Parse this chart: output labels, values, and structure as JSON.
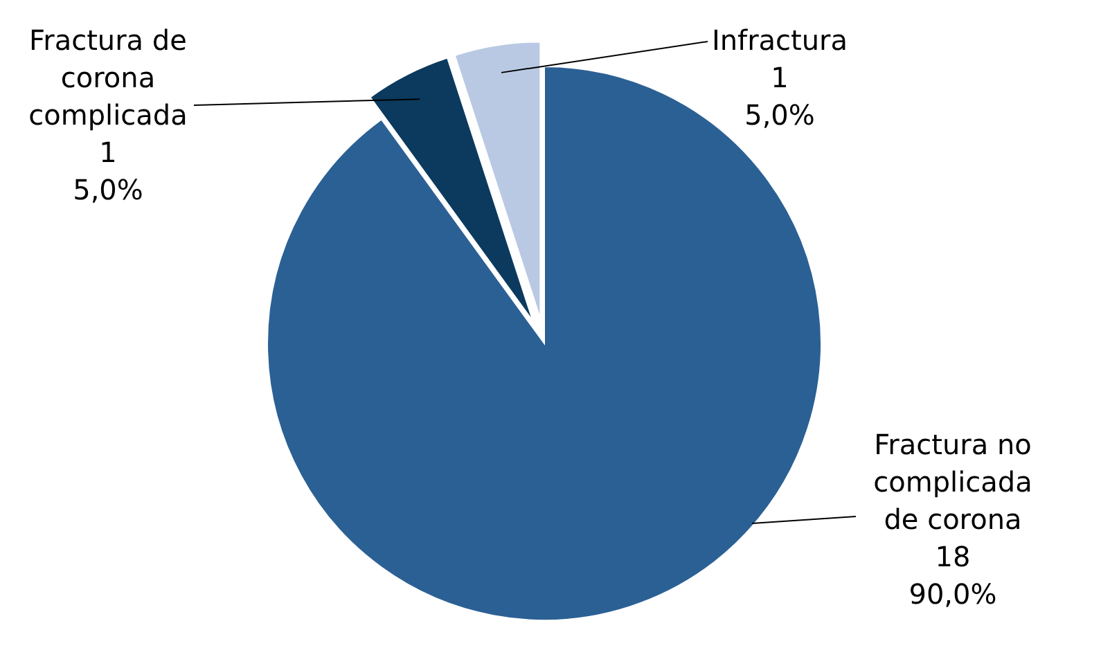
{
  "chart_data": {
    "type": "pie",
    "categories": [
      "Fractura no complicada de corona",
      "Fractura de corona complicada",
      "Infractura"
    ],
    "values": [
      18,
      1,
      1
    ],
    "value_labels": [
      "18\n90,0%",
      "1\n5,0%",
      "1\n5,0%"
    ],
    "colors": [
      "#2b6094",
      "#0c3a5e",
      "#b9c9e3"
    ]
  }
}
